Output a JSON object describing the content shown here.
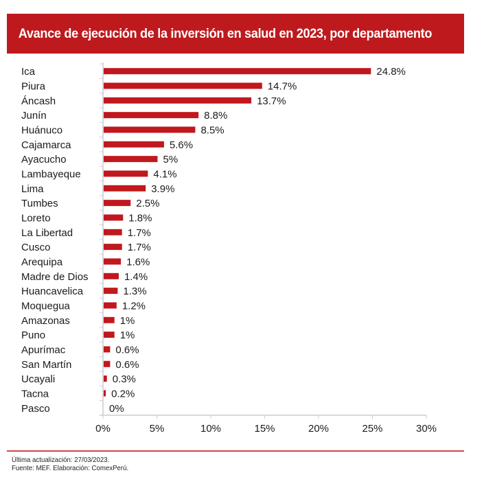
{
  "header": {
    "title": "Avance de ejecución de la inversión en salud en 2023, por departamento"
  },
  "footer": {
    "updated": "Última actualización: 27/03/2023.",
    "source": "Fuente: MEF. Elaboración: ComexPerú."
  },
  "colors": {
    "accent": "#be1a1e",
    "bar": "#c0181e",
    "axis": "#cccccc"
  },
  "chart_data": {
    "type": "bar",
    "orientation": "horizontal",
    "title": "Avance de ejecución de la inversión en salud en 2023, por departamento",
    "xlabel": "",
    "ylabel": "",
    "xlim": [
      0,
      30
    ],
    "grid": false,
    "legend": "none",
    "categories": [
      "Ica",
      "Piura",
      "Áncash",
      "Junín",
      "Huánuco",
      "Cajamarca",
      "Ayacucho",
      "Lambayeque",
      "Lima",
      "Tumbes",
      "Loreto",
      "La Libertad",
      "Cusco",
      "Arequipa",
      "Madre de Dios",
      "Huancavelica",
      "Moquegua",
      "Amazonas",
      "Puno",
      "Apurímac",
      "San Martín",
      "Ucayali",
      "Tacna",
      "Pasco"
    ],
    "values": [
      24.8,
      14.7,
      13.7,
      8.8,
      8.5,
      5.6,
      5.0,
      4.1,
      3.9,
      2.5,
      1.8,
      1.7,
      1.7,
      1.6,
      1.4,
      1.3,
      1.2,
      1.0,
      1.0,
      0.6,
      0.6,
      0.3,
      0.2,
      0.0
    ],
    "value_labels": [
      "24.8%",
      "14.7%",
      "13.7%",
      "8.8%",
      "8.5%",
      "5.6%",
      "5%",
      "4.1%",
      "3.9%",
      "2.5%",
      "1.8%",
      "1.7%",
      "1.7%",
      "1.6%",
      "1.4%",
      "1.3%",
      "1.2%",
      "1%",
      "1%",
      "0.6%",
      "0.6%",
      "0.3%",
      "0.2%",
      "0%"
    ],
    "x_ticks": [
      0,
      5,
      10,
      15,
      20,
      25,
      30
    ],
    "x_tick_labels": [
      "0%",
      "5%",
      "10%",
      "15%",
      "20%",
      "25%",
      "30%"
    ]
  }
}
